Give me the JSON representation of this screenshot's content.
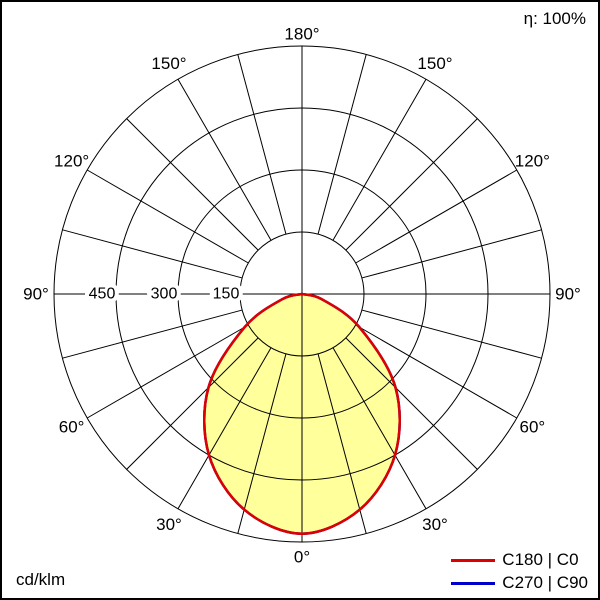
{
  "meta": {
    "efficiency_label": "η: 100%",
    "unit_label": "cd/klm"
  },
  "legend": [
    {
      "label": "C180 | C0",
      "color": "#dd0000"
    },
    {
      "label": "C270 | C90",
      "color": "#0000cc"
    }
  ],
  "chart_data": {
    "type": "line",
    "subtype": "polar-photometric-distribution",
    "unit": "cd/klm",
    "efficiency": "η: 100%",
    "rings": [
      150,
      300,
      450,
      600
    ],
    "ring_labels": [
      {
        "value": 150,
        "label": "150"
      },
      {
        "value": 300,
        "label": "300"
      },
      {
        "value": 450,
        "label": "450"
      }
    ],
    "spoke_step_deg": 15,
    "angle_ticks": [
      {
        "deg": 0,
        "label": "0°"
      },
      {
        "deg": 30,
        "label": "30°"
      },
      {
        "deg": 60,
        "label": "60°"
      },
      {
        "deg": 90,
        "label": "90°"
      },
      {
        "deg": 120,
        "label": "120°"
      },
      {
        "deg": 150,
        "label": "150°"
      },
      {
        "deg": 180,
        "label": "180°"
      }
    ],
    "fill_color": "#ffff9c",
    "series": [
      {
        "name": "C180 | C0",
        "color": "#dd0000",
        "gamma_deg": [
          -90,
          -75,
          -60,
          -45,
          -30,
          -15,
          0,
          15,
          30,
          45,
          60,
          75,
          90
        ],
        "cd_per_klm": [
          0,
          50,
          160,
          320,
          450,
          540,
          580,
          540,
          450,
          320,
          160,
          50,
          0
        ]
      },
      {
        "name": "C270 | C90",
        "color": "#0000cc",
        "gamma_deg": [
          -90,
          -75,
          -60,
          -45,
          -30,
          -15,
          0,
          15,
          30,
          45,
          60,
          75,
          90
        ],
        "cd_per_klm": [
          0,
          50,
          160,
          320,
          450,
          540,
          580,
          540,
          450,
          320,
          160,
          50,
          0
        ]
      }
    ]
  }
}
